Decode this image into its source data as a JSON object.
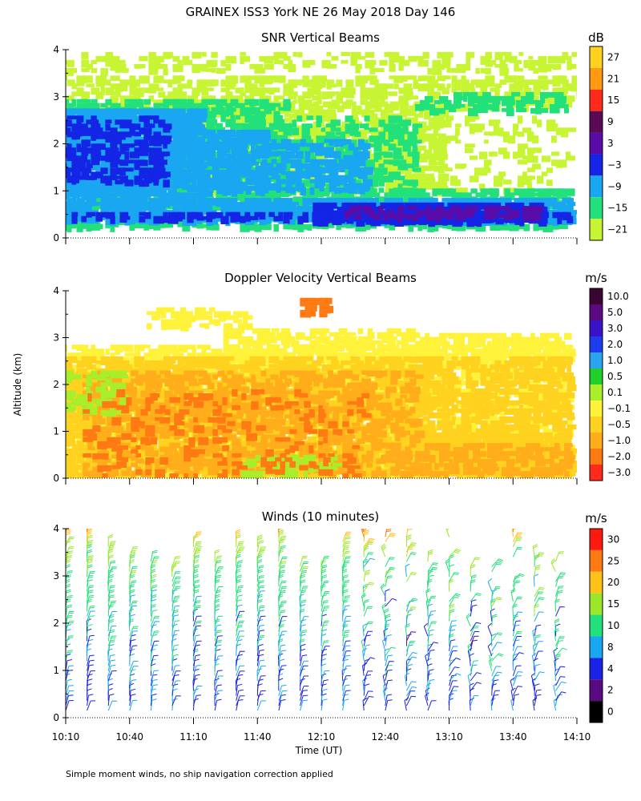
{
  "figure": {
    "title": "GRAINEX ISS3 York NE  26 May 2018 Day 146",
    "footnote": "Simple moment winds, no ship navigation correction applied",
    "shared_ylabel": "Altitude (km)",
    "xlabel": "Time (UT)",
    "xticks": [
      "10:10",
      "10:40",
      "11:10",
      "11:40",
      "12:10",
      "12:40",
      "13:10",
      "13:40",
      "14:10"
    ]
  },
  "chart_data": [
    {
      "type": "heatmap",
      "title": "SNR Vertical Beams",
      "xlim": [
        "10:10",
        "14:10"
      ],
      "ylim": [
        0,
        4
      ],
      "yticks": [
        "0",
        "1",
        "2",
        "3",
        "4"
      ],
      "colorbar": {
        "unit": "dB",
        "labels": [
          "27",
          "21",
          "15",
          "9",
          "3",
          "−3",
          "−9",
          "−15",
          "−21"
        ],
        "colors": [
          "#ffd21f",
          "#ff9a12",
          "#ff2a1a",
          "#5a0a55",
          "#5a0ca8",
          "#1525e6",
          "#1aa7f2",
          "#22e07a",
          "#c8f533"
        ]
      },
      "layers": [
        {
          "name": "scatter-top",
          "color": "#c8f533",
          "rects": [
            [
              10.1,
              3.55,
              14.15,
              3.95,
              0.35
            ],
            [
              10.1,
              2.85,
              14.2,
              3.45,
              0.45
            ],
            [
              11.2,
              1.0,
              13.1,
              2.9,
              0.55
            ],
            [
              13.1,
              1.0,
              14.1,
              2.6,
              0.2
            ]
          ]
        },
        {
          "name": "green",
          "color": "#22e07a",
          "rects": [
            [
              10.1,
              1.0,
              11.9,
              2.95,
              0.6
            ],
            [
              11.9,
              1.0,
              12.9,
              2.6,
              0.4
            ],
            [
              12.9,
              2.7,
              14.1,
              3.1,
              0.45
            ],
            [
              10.1,
              0.25,
              14.1,
              0.55,
              0.55
            ],
            [
              10.1,
              0.7,
              14.1,
              1.05,
              0.6
            ]
          ]
        },
        {
          "name": "cyan",
          "color": "#1aa7f2",
          "rects": [
            [
              10.1,
              0.9,
              11.2,
              2.75,
              0.9
            ],
            [
              11.2,
              1.0,
              11.7,
              2.3,
              0.8
            ],
            [
              11.7,
              1.0,
              12.5,
              2.1,
              0.55
            ],
            [
              10.1,
              0.4,
              14.1,
              0.85,
              0.8
            ]
          ]
        },
        {
          "name": "blue",
          "color": "#1525e6",
          "rects": [
            [
              10.1,
              1.2,
              10.95,
              2.6,
              0.45
            ],
            [
              10.1,
              0.42,
              14.1,
              0.55,
              0.5
            ],
            [
              12.1,
              0.4,
              13.9,
              0.75,
              0.9
            ]
          ]
        },
        {
          "name": "navy",
          "color": "#5a0ca8",
          "rects": [
            [
              12.35,
              0.48,
              13.85,
              0.68,
              0.5
            ]
          ]
        }
      ]
    },
    {
      "type": "heatmap",
      "title": "Doppler Velocity Vertical Beams",
      "xlim": [
        "10:10",
        "14:10"
      ],
      "ylim": [
        0,
        4
      ],
      "yticks": [
        "0",
        "1",
        "2",
        "3",
        "4"
      ],
      "colorbar": {
        "unit": "m/s",
        "labels": [
          "10.0",
          "5.0",
          "3.0",
          "2.0",
          "1.0",
          "0.5",
          "0.1",
          "−0.1",
          "−0.5",
          "−1.0",
          "−2.0",
          "−3.0"
        ],
        "colors": [
          "#3a0530",
          "#5a0a80",
          "#3a13c8",
          "#1c3cf0",
          "#2aa6f0",
          "#22d02c",
          "#a9ee2a",
          "#fff23a",
          "#ffd21f",
          "#ffad1a",
          "#ff7a12",
          "#ff2a1a"
        ]
      },
      "layers": [
        {
          "name": "yellow",
          "color": "#fff23a",
          "rects": [
            [
              10.1,
              0.1,
              14.1,
              2.85,
              0.5
            ],
            [
              11.4,
              2.2,
              12.9,
              3.2,
              0.55
            ],
            [
              12.9,
              2.6,
              14.1,
              3.1,
              0.6
            ],
            [
              10.8,
              3.3,
              11.6,
              3.65,
              0.5
            ]
          ]
        },
        {
          "name": "light-orange",
          "color": "#ffd21f",
          "rects": [
            [
              10.1,
              0.1,
              14.1,
              2.6,
              0.65
            ],
            [
              12.9,
              0.1,
              14.1,
              0.95,
              0.85
            ]
          ]
        },
        {
          "name": "orange",
          "color": "#ffad1a",
          "rects": [
            [
              10.3,
              0.1,
              12.9,
              2.3,
              0.45
            ],
            [
              12.9,
              0.15,
              14.1,
              0.75,
              0.55
            ]
          ]
        },
        {
          "name": "lime",
          "color": "#a9ee2a",
          "rects": [
            [
              10.1,
              1.4,
              10.6,
              2.3,
              0.35
            ],
            [
              11.5,
              0.15,
              12.3,
              0.5,
              0.4
            ]
          ]
        },
        {
          "name": "red-orange",
          "color": "#ff7a12",
          "rects": [
            [
              10.3,
              0.1,
              12.5,
              1.9,
              0.15
            ],
            [
              12.0,
              3.55,
              12.2,
              3.85,
              0.8
            ]
          ]
        }
      ]
    },
    {
      "type": "wind-barbs",
      "title": "Winds (10 minutes)",
      "xlim": [
        "10:10",
        "14:10"
      ],
      "ylim": [
        0,
        4
      ],
      "yticks": [
        "0",
        "1",
        "2",
        "3",
        "4"
      ],
      "columns_start": 10.1667,
      "columns_step": 0.1667,
      "columns_count": 24,
      "colorbar": {
        "unit": "m/s",
        "labels": [
          "30",
          "25",
          "20",
          "15",
          "10",
          "8",
          "4",
          "2",
          "0"
        ],
        "colors": [
          "#ff1a10",
          "#ff7a12",
          "#ffc21a",
          "#9ae82a",
          "#22e07a",
          "#1aa7f2",
          "#1a22e6",
          "#5a0a80",
          "#000000"
        ]
      },
      "speed_profile_by_altitude_km": [
        [
          0.2,
          7
        ],
        [
          1.0,
          8
        ],
        [
          2.0,
          10
        ],
        [
          3.0,
          14
        ],
        [
          3.6,
          18
        ],
        [
          4.0,
          26
        ]
      ]
    }
  ]
}
